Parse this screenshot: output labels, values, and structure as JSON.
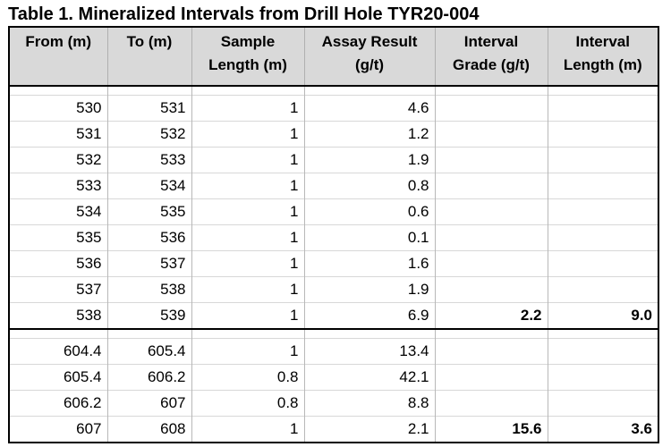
{
  "title": "Table 1. Mineralized Intervals from Drill Hole TYR20-004",
  "headers": [
    [
      "From (m)"
    ],
    [
      "To (m)"
    ],
    [
      "Sample",
      "Length (m)"
    ],
    [
      "Assay Result",
      "(g/t)"
    ],
    [
      "Interval",
      "Grade (g/t)"
    ],
    [
      "Interval",
      "Length (m)"
    ]
  ],
  "groups": [
    {
      "rows": [
        [
          "530",
          "531",
          "1",
          "4.6",
          "",
          ""
        ],
        [
          "531",
          "532",
          "1",
          "1.2",
          "",
          ""
        ],
        [
          "532",
          "533",
          "1",
          "1.9",
          "",
          ""
        ],
        [
          "533",
          "534",
          "1",
          "0.8",
          "",
          ""
        ],
        [
          "534",
          "535",
          "1",
          "0.6",
          "",
          ""
        ],
        [
          "535",
          "536",
          "1",
          "0.1",
          "",
          ""
        ],
        [
          "536",
          "537",
          "1",
          "1.6",
          "",
          ""
        ],
        [
          "537",
          "538",
          "1",
          "1.9",
          "",
          ""
        ],
        [
          "538",
          "539",
          "1",
          "6.9",
          "2.2",
          "9.0"
        ]
      ]
    },
    {
      "rows": [
        [
          "604.4",
          "605.4",
          "1",
          "13.4",
          "",
          ""
        ],
        [
          "605.4",
          "606.2",
          "0.8",
          "42.1",
          "",
          ""
        ],
        [
          "606.2",
          "607",
          "0.8",
          "8.8",
          "",
          ""
        ],
        [
          "607",
          "608",
          "1",
          "2.1",
          "15.6",
          "3.6"
        ]
      ]
    }
  ]
}
